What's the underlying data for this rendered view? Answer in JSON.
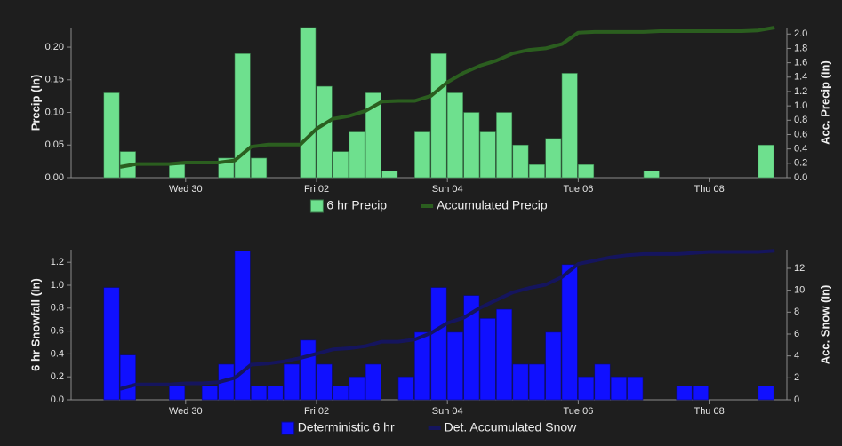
{
  "chart_data": [
    {
      "type": "bar",
      "ylabel": "Precip (In)",
      "y2label": "Acc. Precip (In)",
      "xlim": [
        -2,
        41.75
      ],
      "xticks": [
        {
          "value": 5,
          "label": "Wed 30"
        },
        {
          "value": 13,
          "label": "Fri 02"
        },
        {
          "value": 21,
          "label": "Sun 04"
        },
        {
          "value": 29,
          "label": "Tue 06"
        },
        {
          "value": 37,
          "label": "Thu 08"
        }
      ],
      "ylim": [
        0,
        0.23
      ],
      "yticks": [
        {
          "value": 0,
          "label": "0.00"
        },
        0.05,
        {
          "value": 0.1,
          "label": "0.10"
        },
        0.15,
        {
          "value": 0.2,
          "label": "0.20"
        }
      ],
      "y2lim": [
        0,
        2.09
      ],
      "y2ticks": [
        {
          "value": 0,
          "label": "0.0"
        },
        0.2,
        0.4,
        0.6,
        0.8,
        {
          "value": 1,
          "label": "1.0"
        },
        1.2,
        1.4,
        1.6,
        1.8,
        {
          "value": 2,
          "label": "2.0"
        }
      ],
      "series": [
        {
          "name": "6 hr Precip",
          "type": "bar",
          "color": "#6ee08e",
          "edge": "#3a7a4a",
          "x": [
            0,
            1,
            2,
            3,
            4,
            5,
            6,
            7,
            8,
            9,
            10,
            11,
            12,
            13,
            14,
            15,
            16,
            17,
            18,
            19,
            20,
            21,
            22,
            23,
            24,
            25,
            26,
            27,
            28,
            29,
            30,
            31,
            32,
            33,
            34,
            35,
            36,
            37,
            38,
            39,
            40
          ],
          "values": [
            0.13,
            0.04,
            0,
            0,
            0.02,
            0,
            0,
            0.03,
            0.19,
            0.03,
            0,
            0,
            0.23,
            0.14,
            0.04,
            0.07,
            0.13,
            0.01,
            0,
            0.07,
            0.19,
            0.13,
            0.1,
            0.07,
            0.1,
            0.05,
            0.02,
            0.06,
            0.16,
            0.02,
            0,
            0,
            0,
            0.01,
            0,
            0,
            0,
            0,
            0,
            0,
            0.05
          ]
        },
        {
          "name": "Accumulated Precip",
          "type": "line",
          "axis": "y2",
          "color": "#2b5e1f",
          "x": [
            1,
            2,
            3,
            4,
            5,
            6,
            7,
            8,
            9,
            10,
            11,
            12,
            13,
            14,
            15,
            16,
            17,
            18,
            19,
            20,
            21,
            22,
            23,
            24,
            25,
            26,
            27,
            28,
            29,
            30,
            31,
            32,
            33,
            34,
            35,
            36,
            37,
            38,
            39,
            40,
            41
          ],
          "values": [
            0.15,
            0.19,
            0.19,
            0.19,
            0.21,
            0.21,
            0.21,
            0.24,
            0.43,
            0.46,
            0.46,
            0.46,
            0.68,
            0.82,
            0.86,
            0.93,
            1.06,
            1.07,
            1.07,
            1.14,
            1.33,
            1.46,
            1.56,
            1.63,
            1.73,
            1.78,
            1.8,
            1.86,
            2.02,
            2.03,
            2.03,
            2.03,
            2.03,
            2.04,
            2.04,
            2.04,
            2.04,
            2.04,
            2.04,
            2.05,
            2.09
          ]
        }
      ]
    },
    {
      "type": "bar",
      "ylabel": "6 hr Snowfall (In)",
      "y2label": "Acc. Snow (In)",
      "xlim": [
        -2,
        41.75
      ],
      "xticks": [
        {
          "value": 5,
          "label": "Wed 30"
        },
        {
          "value": 13,
          "label": "Fri 02"
        },
        {
          "value": 21,
          "label": "Sun 04"
        },
        {
          "value": 29,
          "label": "Tue 06"
        },
        {
          "value": 37,
          "label": "Thu 08"
        }
      ],
      "ylim": [
        0,
        1.31
      ],
      "yticks": [
        {
          "value": 0,
          "label": "0.0"
        },
        0.2,
        0.4,
        0.6,
        0.8,
        {
          "value": 1,
          "label": "1.0"
        },
        1.2
      ],
      "y2lim": [
        0,
        13.7
      ],
      "y2ticks": [
        0,
        2,
        4,
        6,
        8,
        10,
        12
      ],
      "series": [
        {
          "name": "Deterministic 6 hr",
          "type": "bar",
          "color": "#1010ff",
          "edge": "#0a0a80",
          "x": [
            0,
            1,
            2,
            3,
            4,
            5,
            6,
            7,
            8,
            9,
            10,
            11,
            12,
            13,
            14,
            15,
            16,
            17,
            18,
            19,
            20,
            21,
            22,
            23,
            24,
            25,
            26,
            27,
            28,
            29,
            30,
            31,
            32,
            33,
            34,
            35,
            36,
            37,
            38,
            39,
            40
          ],
          "values": [
            0.98,
            0.39,
            0,
            0,
            0.12,
            0,
            0.12,
            0.31,
            1.3,
            0.12,
            0.12,
            0.31,
            0.52,
            0.31,
            0.12,
            0.2,
            0.31,
            0,
            0.2,
            0.59,
            0.98,
            0.59,
            0.91,
            0.71,
            0.79,
            0.31,
            0.31,
            0.59,
            1.18,
            0.2,
            0.31,
            0.2,
            0.2,
            0,
            0,
            0.12,
            0.12,
            0,
            0,
            0,
            0.12
          ]
        },
        {
          "name": "Det. Accumulated Snow",
          "type": "line",
          "axis": "y2",
          "color": "#15155e",
          "x": [
            1,
            2,
            3,
            4,
            5,
            6,
            7,
            8,
            9,
            10,
            11,
            12,
            13,
            14,
            15,
            16,
            17,
            18,
            19,
            20,
            21,
            22,
            23,
            24,
            25,
            26,
            27,
            28,
            29,
            30,
            31,
            32,
            33,
            34,
            35,
            36,
            37,
            38,
            39,
            40,
            41
          ],
          "values": [
            1.0,
            1.4,
            1.4,
            1.4,
            1.5,
            1.5,
            1.6,
            2.0,
            3.2,
            3.3,
            3.5,
            3.8,
            4.2,
            4.6,
            4.7,
            4.9,
            5.3,
            5.3,
            5.5,
            6.1,
            7.0,
            7.5,
            8.4,
            9.1,
            9.8,
            10.2,
            10.5,
            11.2,
            12.4,
            12.7,
            13.0,
            13.2,
            13.3,
            13.3,
            13.3,
            13.4,
            13.5,
            13.5,
            13.5,
            13.5,
            13.6
          ]
        }
      ]
    }
  ]
}
